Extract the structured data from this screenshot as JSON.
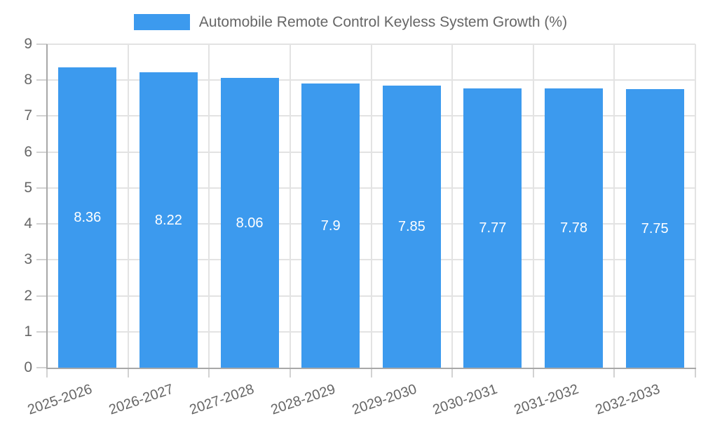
{
  "legend": {
    "label": "Automobile Remote Control Keyless System Growth (%)"
  },
  "chart_data": {
    "type": "bar",
    "title": "Automobile Remote Control Keyless System Growth (%)",
    "categories": [
      "2025-2026",
      "2026-2027",
      "2027-2028",
      "2028-2029",
      "2029-2030",
      "2030-2031",
      "2031-2032",
      "2032-2033"
    ],
    "values": [
      8.36,
      8.22,
      8.06,
      7.9,
      7.85,
      7.77,
      7.78,
      7.75
    ],
    "value_labels": [
      "8.36",
      "8.22",
      "8.06",
      "7.9",
      "7.85",
      "7.77",
      "7.78",
      "7.75"
    ],
    "xlabel": "",
    "ylabel": "",
    "ylim": [
      0,
      9
    ],
    "yticks": [
      0,
      1,
      2,
      3,
      4,
      5,
      6,
      7,
      8,
      9
    ],
    "grid": true,
    "legend_position": "top",
    "colors": {
      "bar": "#3c9aee",
      "bar_label": "#ffffff",
      "axis_text": "#666666",
      "grid_line": "#e3e3e3",
      "tick_line": "#d2d2d2",
      "axis_line": "#a8a8a8"
    }
  }
}
